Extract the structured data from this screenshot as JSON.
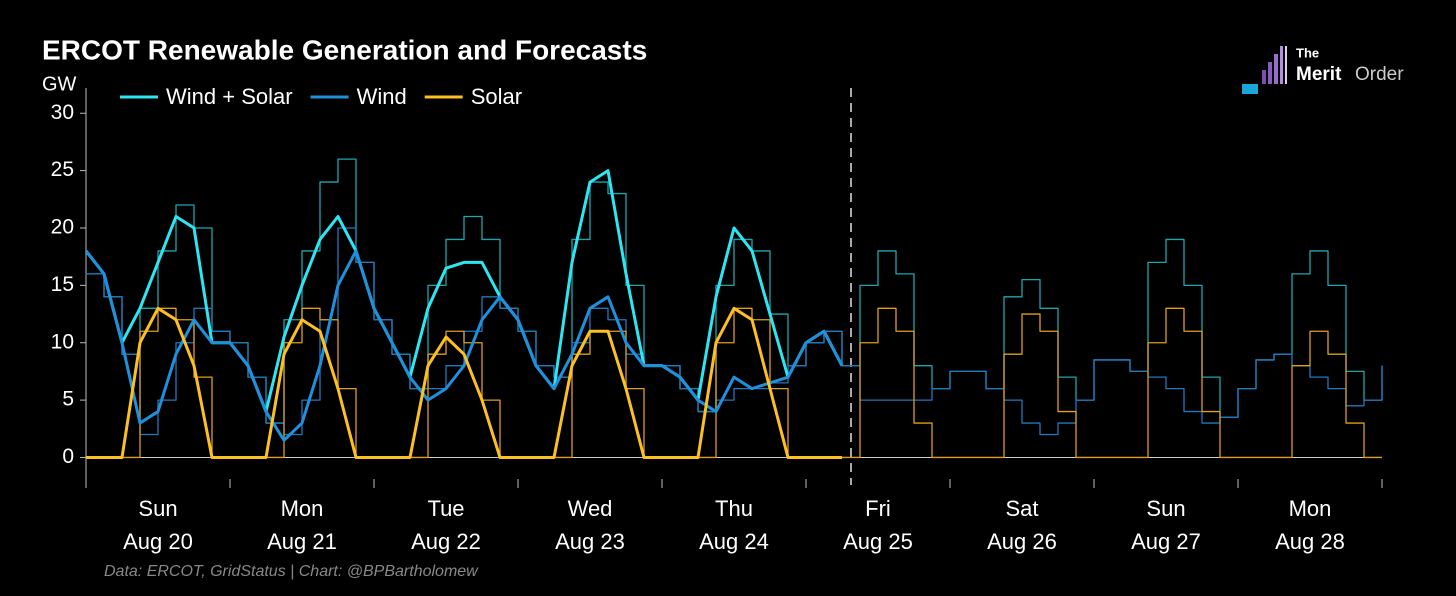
{
  "chart_data": {
    "type": "line",
    "title": "ERCOT Renewable Generation and Forecasts",
    "y_label": "GW",
    "source": "Data: ERCOT, GridStatus | Chart: @BPBartholomew",
    "logo": {
      "top": "The",
      "left": "Merit",
      "right": "Order"
    },
    "legend": "top-left",
    "x": [
      0,
      3,
      6,
      9,
      12,
      15,
      18,
      21,
      24,
      27,
      30,
      33,
      36,
      39,
      42,
      45,
      48,
      51,
      54,
      57,
      60,
      63,
      66,
      69,
      72,
      75,
      78,
      81,
      84,
      87,
      90,
      93,
      96,
      99,
      102,
      105,
      108,
      111,
      114,
      117,
      120,
      123,
      126,
      129,
      132,
      135,
      138,
      141,
      144,
      147,
      150,
      153,
      156,
      159,
      162,
      165,
      168,
      171,
      174,
      177,
      180,
      183,
      186,
      189,
      192,
      195,
      198,
      201,
      204,
      207,
      210,
      213,
      216
    ],
    "xlim": [
      0,
      216
    ],
    "xtick_marks": [
      0,
      24,
      48,
      72,
      96,
      120,
      144,
      168,
      192,
      216
    ],
    "xtick_labels": [
      {
        "value": 12,
        "label": [
          "Sun",
          "Aug 20"
        ]
      },
      {
        "value": 36,
        "label": [
          "Mon",
          "Aug 21"
        ]
      },
      {
        "value": 60,
        "label": [
          "Tue",
          "Aug 22"
        ]
      },
      {
        "value": 84,
        "label": [
          "Wed",
          "Aug 23"
        ]
      },
      {
        "value": 108,
        "label": [
          "Thu",
          "Aug 24"
        ]
      },
      {
        "value": 132,
        "label": [
          "Fri",
          "Aug 25"
        ]
      },
      {
        "value": 156,
        "label": [
          "Sat",
          "Aug 26"
        ]
      },
      {
        "value": 180,
        "label": [
          "Sun",
          "Aug 27"
        ]
      },
      {
        "value": 204,
        "label": [
          "Mon",
          "Aug 28"
        ]
      }
    ],
    "vline": 127.5,
    "ylim": [
      -2.4,
      32.2
    ],
    "yticks": [
      0,
      5,
      10,
      15,
      20,
      25,
      30
    ],
    "zero_line": true,
    "series": [
      {
        "color": "#1aa8b0",
        "width": 1.3,
        "style": "step",
        "values": [
          16,
          14,
          9,
          13,
          18,
          22,
          20,
          11,
          10,
          7,
          3,
          12,
          18,
          24,
          26,
          17,
          12,
          9,
          6,
          15,
          19,
          21,
          19,
          13,
          11,
          8,
          7,
          19,
          24,
          23,
          15,
          8,
          8,
          6,
          4,
          15,
          19,
          18,
          12.5,
          8,
          10,
          11,
          8,
          15,
          18,
          16,
          8,
          6,
          7.5,
          7.5,
          6,
          14,
          15.5,
          13,
          7,
          5,
          8.5,
          8.5,
          7.5,
          17,
          19,
          15,
          7,
          3.5,
          6,
          8.5,
          9,
          16,
          18,
          15,
          7.5,
          5,
          8
        ]
      },
      {
        "color": "#1f78c0",
        "width": 1.3,
        "style": "step",
        "values": [
          16,
          14,
          9,
          2,
          5,
          10,
          13,
          11,
          10,
          7,
          3,
          2,
          5,
          12,
          20,
          17,
          12,
          9,
          6,
          6,
          8,
          11,
          14,
          13,
          11,
          8,
          7,
          10,
          13,
          12,
          9,
          8,
          8,
          6,
          4,
          5,
          6,
          6,
          6.5,
          8,
          10,
          11,
          8,
          5,
          5,
          5,
          5,
          6,
          7.5,
          7.5,
          6,
          5,
          3,
          2,
          3,
          5,
          8.5,
          8.5,
          7.5,
          7,
          6,
          4,
          3,
          3.5,
          6,
          8.5,
          9,
          8,
          7,
          6,
          4.5,
          5,
          8
        ]
      },
      {
        "color": "#e0a010",
        "width": 1.3,
        "style": "step",
        "values": [
          0,
          0,
          0,
          11,
          13,
          12,
          7,
          0,
          0,
          0,
          0,
          10,
          13,
          12,
          6,
          0,
          0,
          0,
          0,
          9,
          11,
          10,
          5,
          0,
          0,
          0,
          0,
          9,
          11,
          11,
          6,
          0,
          0,
          0,
          0,
          10,
          13,
          12,
          6,
          0,
          0,
          0,
          0,
          10,
          13,
          11,
          3,
          0,
          0,
          0,
          0,
          9,
          12.5,
          11,
          4,
          0,
          0,
          0,
          0,
          10,
          13,
          11,
          4,
          0,
          0,
          0,
          0,
          8,
          11,
          9,
          3,
          0,
          0
        ]
      },
      {
        "name": "Wind + Solar",
        "color": "#2ee6f2",
        "width": 3,
        "style": "line",
        "values": [
          18,
          16,
          10,
          13,
          17,
          21,
          20,
          10,
          10,
          8,
          4,
          10.5,
          15,
          19,
          21,
          18,
          13,
          10,
          7,
          13,
          16.5,
          17,
          17,
          14,
          12,
          8,
          6,
          17,
          24,
          25,
          16,
          8,
          8,
          7,
          5,
          14,
          20,
          18,
          12.5,
          7,
          10,
          11,
          8,
          null,
          null,
          null,
          null,
          null,
          null,
          null,
          null,
          null,
          null,
          null,
          null,
          null,
          null,
          null,
          null,
          null,
          null,
          null,
          null,
          null,
          null,
          null,
          null,
          null,
          null,
          null,
          null,
          null,
          null
        ]
      },
      {
        "name": "Wind",
        "color": "#1e90dc",
        "width": 3,
        "style": "line",
        "values": [
          18,
          16,
          10,
          3,
          4,
          9,
          12,
          10,
          10,
          8,
          4,
          1.5,
          3,
          8,
          15,
          18,
          13,
          10,
          7,
          5,
          6,
          8,
          12,
          14,
          12,
          8,
          6,
          9,
          13,
          14,
          10,
          8,
          8,
          7,
          5,
          4,
          7,
          6,
          6.5,
          7,
          10,
          11,
          8,
          null,
          null,
          null,
          null,
          null,
          null,
          null,
          null,
          null,
          null,
          null,
          null,
          null,
          null,
          null,
          null,
          null,
          null,
          null,
          null,
          null,
          null,
          null,
          null,
          null,
          null,
          null,
          null,
          null,
          null
        ]
      },
      {
        "name": "Solar",
        "color": "#fdc023",
        "width": 3,
        "style": "line",
        "values": [
          0,
          0,
          0,
          10,
          13,
          12,
          8,
          0,
          0,
          0,
          0,
          9,
          12,
          11,
          6,
          0,
          0,
          0,
          0,
          8,
          10.5,
          9,
          5,
          0,
          0,
          0,
          0,
          8,
          11,
          11,
          6,
          0,
          0,
          0,
          0,
          10,
          13,
          12,
          6,
          0,
          0,
          0,
          0,
          null,
          null,
          null,
          null,
          null,
          null,
          null,
          null,
          null,
          null,
          null,
          null,
          null,
          null,
          null,
          null,
          null,
          null,
          null,
          null,
          null,
          null,
          null,
          null,
          null,
          null,
          null,
          null,
          null,
          null
        ]
      }
    ]
  }
}
